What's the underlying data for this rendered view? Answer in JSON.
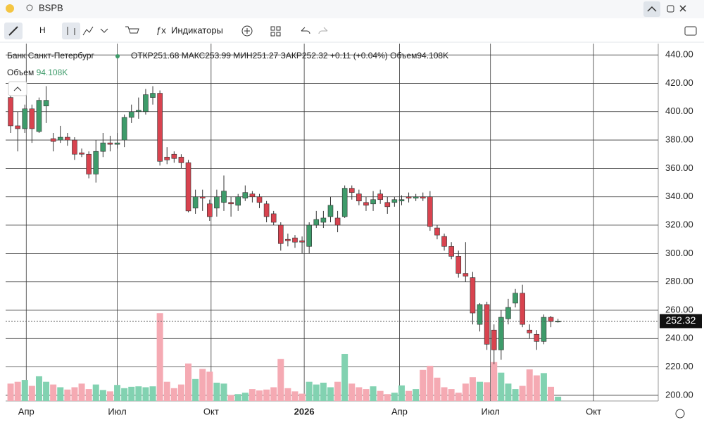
{
  "ui": {
    "symbol": "BSPB",
    "interval": "H",
    "indicators": "Индикаторы",
    "instrument": "Банк Санкт-Петербург",
    "ohlc_labels": [
      "ОТКР",
      "МАКС",
      "МИН",
      "ЗАКР"
    ],
    "change": "+0.11 (+0.04%)",
    "volume_label": "Объем",
    "last_volume_label": "94.108K"
  },
  "chart_data": {
    "type": "candlestick",
    "open": [
      410,
      390,
      388,
      402,
      386,
      404,
      381,
      380,
      382,
      380,
      371,
      370,
      356,
      372,
      378,
      377,
      380,
      396,
      400,
      400,
      410,
      413,
      368,
      370,
      368,
      364,
      332,
      340,
      335,
      332,
      336,
      336,
      334,
      339,
      342,
      340,
      335,
      328,
      320,
      310,
      311,
      309,
      305,
      320,
      322,
      326,
      325,
      326,
      346,
      342,
      336,
      335,
      342,
      336,
      336,
      337,
      340,
      339,
      340,
      340,
      318,
      312,
      305,
      298,
      286,
      283,
      250,
      264,
      246,
      232,
      254,
      265,
      272,
      246,
      243,
      238,
      255,
      251.68
    ],
    "high": [
      415,
      400,
      405,
      405,
      410,
      418,
      385,
      390,
      385,
      382,
      374,
      372,
      380,
      385,
      383,
      385,
      398,
      405,
      410,
      416,
      418,
      415,
      375,
      372,
      370,
      366,
      345,
      345,
      338,
      345,
      355,
      340,
      342,
      348,
      344,
      342,
      337,
      330,
      322,
      314,
      313,
      312,
      322,
      330,
      330,
      340,
      330,
      348,
      348,
      345,
      340,
      344,
      345,
      340,
      340,
      341,
      343,
      342,
      343,
      344,
      320,
      314,
      308,
      302,
      308,
      287,
      265,
      266,
      250,
      260,
      268,
      275,
      278,
      250,
      246,
      257,
      256,
      253.99
    ],
    "low": [
      385,
      372,
      385,
      378,
      385,
      392,
      372,
      378,
      376,
      366,
      368,
      353,
      350,
      368,
      372,
      374,
      375,
      392,
      395,
      398,
      405,
      362,
      363,
      364,
      360,
      329,
      328,
      330,
      323,
      326,
      330,
      326,
      330,
      337,
      336,
      332,
      322,
      320,
      302,
      305,
      304,
      300,
      300,
      318,
      318,
      322,
      315,
      325,
      338,
      334,
      330,
      330,
      335,
      328,
      333,
      334,
      336,
      337,
      337,
      316,
      310,
      302,
      296,
      283,
      280,
      250,
      245,
      232,
      222,
      225,
      250,
      262,
      248,
      240,
      232,
      236,
      248,
      251.27
    ],
    "close": [
      390,
      388,
      402,
      388,
      408,
      408,
      379,
      382,
      380,
      370,
      370,
      356,
      372,
      378,
      377,
      378,
      396,
      400,
      401,
      412,
      413,
      365,
      366,
      367,
      364,
      330,
      340,
      339,
      326,
      340,
      344,
      335,
      340,
      343,
      340,
      336,
      326,
      322,
      307,
      309,
      308,
      308,
      320,
      324,
      325,
      334,
      320,
      346,
      343,
      337,
      334,
      338,
      338,
      333,
      338,
      338,
      339,
      340,
      339,
      319,
      313,
      305,
      298,
      286,
      284,
      258,
      264,
      236,
      232,
      255,
      262,
      272,
      250,
      244,
      238,
      255,
      252,
      252.32
    ],
    "volume": [
      380,
      420,
      460,
      330,
      540,
      420,
      360,
      300,
      250,
      300,
      380,
      260,
      360,
      240,
      210,
      350,
      280,
      310,
      320,
      300,
      320,
      1920,
      420,
      280,
      360,
      820,
      480,
      700,
      640,
      400,
      380,
      130,
      150,
      180,
      260,
      230,
      250,
      300,
      920,
      280,
      210,
      160,
      420,
      360,
      400,
      300,
      420,
      1030,
      380,
      300,
      260,
      320,
      220,
      150,
      180,
      340,
      220,
      260,
      680,
      770,
      510,
      300,
      260,
      180,
      380,
      520,
      420,
      410,
      850,
      620,
      380,
      260,
      330,
      690,
      560,
      610,
      310,
      94.108
    ],
    "ylim": [
      196,
      448
    ],
    "yticks": [
      {
        "value": 200,
        "label": "200.00"
      },
      {
        "value": 220,
        "label": "220.00"
      },
      {
        "value": 240,
        "label": "240.00"
      },
      {
        "value": 260,
        "label": "260.00"
      },
      {
        "value": 280,
        "label": "280.00"
      },
      {
        "value": 300,
        "label": "300.00"
      },
      {
        "value": 320,
        "label": "320.00"
      },
      {
        "value": 340,
        "label": "340.00"
      },
      {
        "value": 360,
        "label": "360.00"
      },
      {
        "value": 380,
        "label": "380.00"
      },
      {
        "value": 400,
        "label": "400.00"
      },
      {
        "value": 420,
        "label": "420.00"
      },
      {
        "value": 440,
        "label": "440.00"
      }
    ],
    "xlim": [
      -0.7,
      91.1
    ],
    "xticks": [
      {
        "value": 2.2,
        "label": "Апр"
      },
      {
        "value": 15,
        "label": "Июл"
      },
      {
        "value": 28.2,
        "label": "Окт"
      },
      {
        "value": 41.3,
        "label": "2026"
      },
      {
        "value": 54.7,
        "label": "Апр"
      },
      {
        "value": 67.5,
        "label": "Июл"
      },
      {
        "value": 82,
        "label": "Окт"
      }
    ],
    "volume_lim": [
      0,
      2000
    ],
    "up_color": "#3e9b6a",
    "down_color": "#d8434f",
    "up_volume_color": "#82d2b1",
    "down_volume_color": "#f5aab3",
    "grid": true
  }
}
